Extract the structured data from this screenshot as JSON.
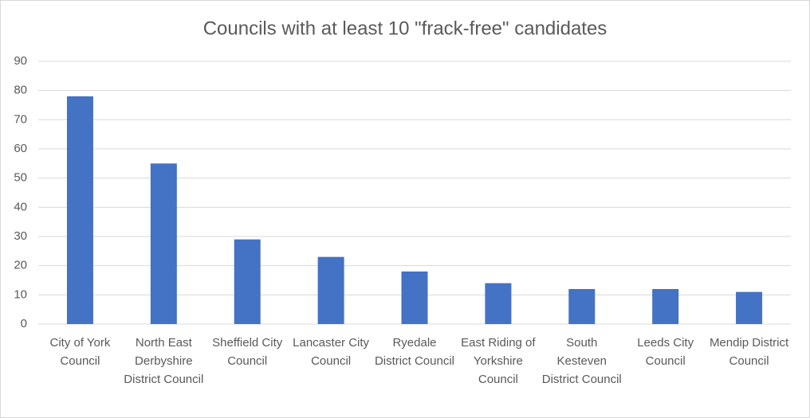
{
  "chart_data": {
    "type": "bar",
    "title": "Councils with at least 10 \"frack-free\" candidates",
    "categories": [
      "City of York Council",
      "North East Derbyshire District Council",
      "Sheffield City Council",
      "Lancaster City Council",
      "Ryedale District Council",
      "East Riding of Yorkshire Council",
      "South Kesteven District Council",
      "Leeds City Council",
      "Mendip District Council"
    ],
    "values": [
      78,
      55,
      29,
      23,
      18,
      14,
      12,
      12,
      11
    ],
    "color": "#4472c4",
    "ylim": [
      0,
      90
    ],
    "yticks": [
      0,
      10,
      20,
      30,
      40,
      50,
      60,
      70,
      80,
      90
    ],
    "grid": true
  }
}
